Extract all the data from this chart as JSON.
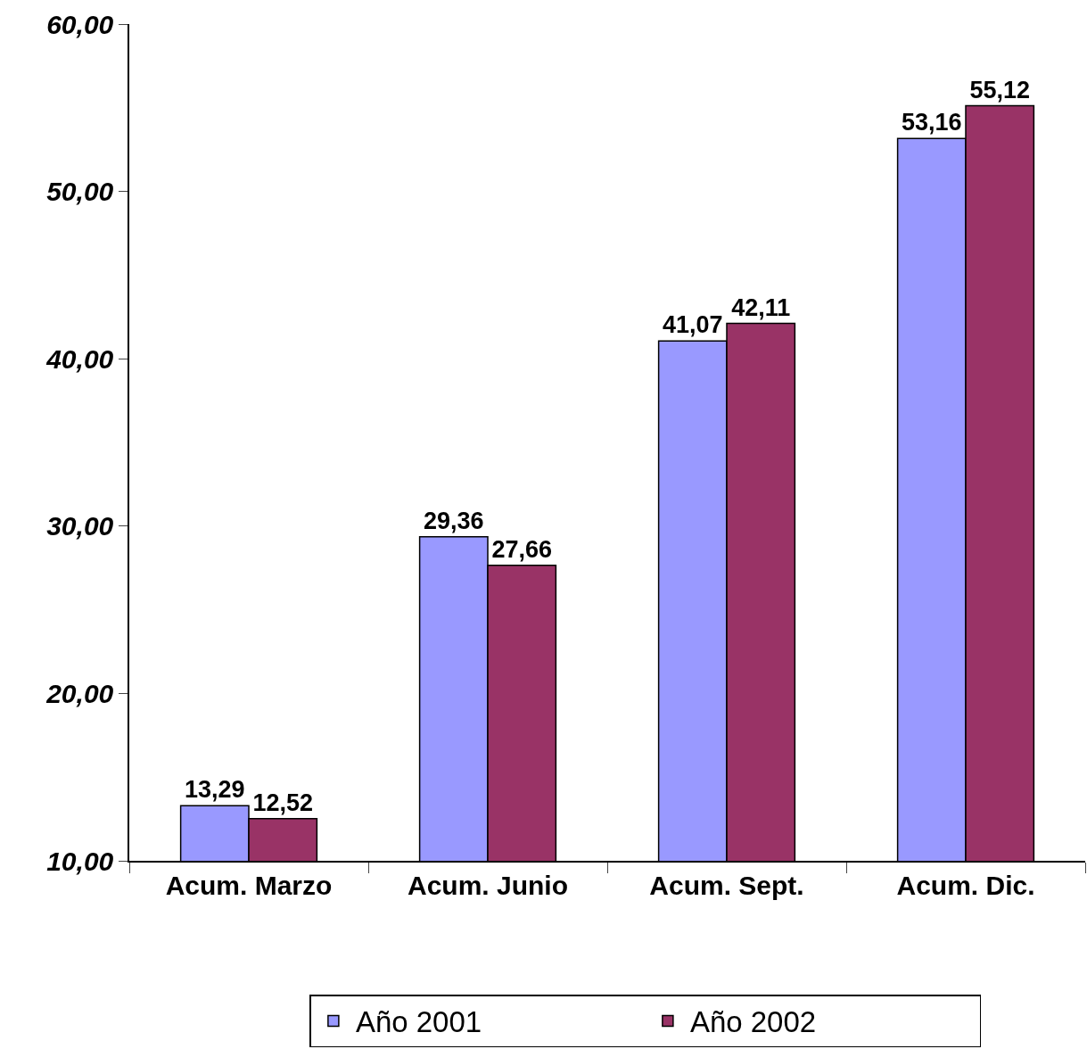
{
  "chart_data": {
    "type": "bar",
    "categories": [
      "Acum. Marzo",
      "Acum. Junio",
      "Acum. Sept.",
      "Acum. Dic."
    ],
    "series": [
      {
        "name": "Año 2001",
        "color": "#9999ff",
        "values": [
          13.29,
          29.36,
          41.07,
          53.16
        ],
        "value_labels": [
          "13,29",
          "29,36",
          "41,07",
          "53,16"
        ]
      },
      {
        "name": "Año 2002",
        "color": "#993366",
        "values": [
          12.52,
          27.66,
          42.11,
          55.12
        ],
        "value_labels": [
          "12,52",
          "27,66",
          "42,11",
          "55,12"
        ]
      }
    ],
    "ylim": [
      10,
      60
    ],
    "yticks": [
      {
        "value": 10,
        "label": "10,00"
      },
      {
        "value": 20,
        "label": "20,00"
      },
      {
        "value": 30,
        "label": "30,00"
      },
      {
        "value": 40,
        "label": "40,00"
      },
      {
        "value": 50,
        "label": "50,00"
      },
      {
        "value": 60,
        "label": "60,00"
      }
    ],
    "grid": false,
    "legend": "bottom"
  }
}
